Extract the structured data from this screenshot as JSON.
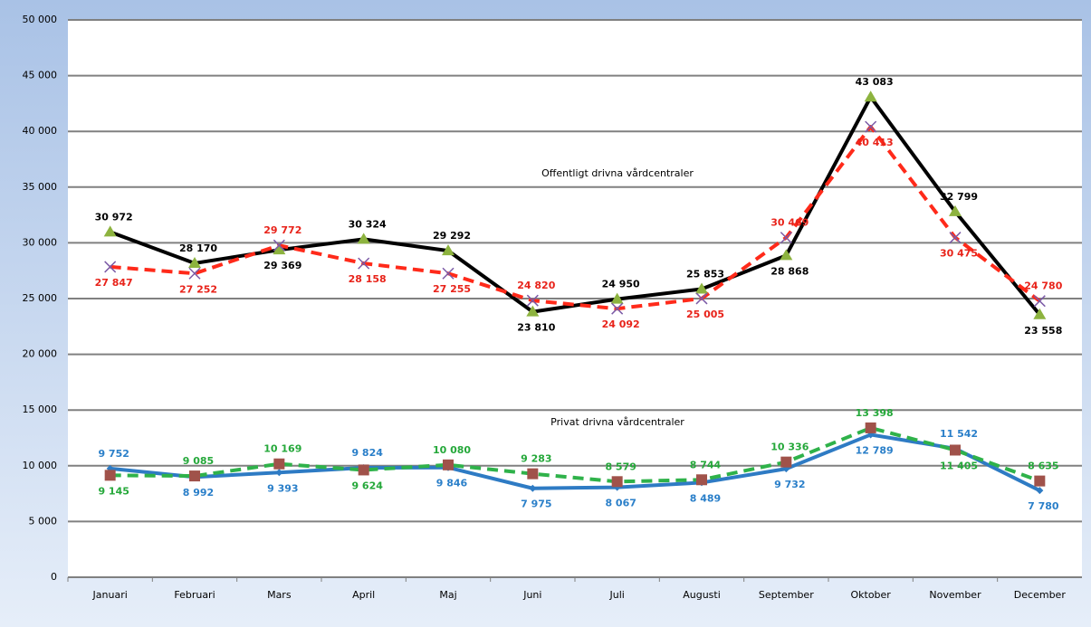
{
  "chart_data": {
    "type": "line",
    "categories": [
      "Januari",
      "Februari",
      "Mars",
      "April",
      "Maj",
      "Juni",
      "Juli",
      "Augusti",
      "September",
      "Oktober",
      "November",
      "December"
    ],
    "annotations": [
      "Offentligt drivna vårdcentraler",
      "Privat drivna vårdcentraler"
    ],
    "ylim": [
      0,
      50000
    ],
    "yticks": [
      0,
      {
        "value": 5000,
        "label": "5 000"
      },
      {
        "value": 10000,
        "label": "10 000"
      },
      {
        "value": 15000,
        "label": "15 000"
      },
      {
        "value": 20000,
        "label": "20 000"
      },
      {
        "value": 25000,
        "label": "25 000"
      },
      {
        "value": 30000,
        "label": "30 000"
      },
      {
        "value": 35000,
        "label": "35 000"
      },
      {
        "value": 40000,
        "label": "40 000"
      },
      {
        "value": 45000,
        "label": "45 000"
      },
      {
        "value": 50000,
        "label": "50 000"
      }
    ],
    "grid": true,
    "series": [
      {
        "color": "#000000",
        "label_color": "#000000",
        "marker": "triangle",
        "marker_color": "#8db33f",
        "dashed": false,
        "values": [
          30972,
          28170,
          29369,
          30324,
          29292,
          23810,
          24950,
          25853,
          28868,
          43083,
          32799,
          23558
        ],
        "value_labels": [
          "30 972",
          "28 170",
          "29 369",
          "30 324",
          "29 292",
          "23 810",
          "24 950",
          "25 853",
          "28 868",
          "43 083",
          "32 799",
          "23 558"
        ]
      },
      {
        "color": "#ff2a1a",
        "label_color": "#e8231a",
        "marker": "x",
        "marker_color": "#7b5aa6",
        "dashed": true,
        "values": [
          27847,
          27252,
          29772,
          28158,
          27255,
          24820,
          24092,
          25005,
          30469,
          40413,
          30475,
          24780
        ],
        "value_labels": [
          "27 847",
          "27 252",
          "29 772",
          "28 158",
          "27 255",
          "24 820",
          "24 092",
          "25 005",
          "30 469",
          "40 413",
          "30 475",
          "24 780"
        ]
      },
      {
        "color": "#2e7bc4",
        "label_color": "#2a7fc9",
        "marker": "diamond",
        "marker_color": "#2e7bc4",
        "dashed": false,
        "values": [
          9752,
          8992,
          9393,
          9824,
          9846,
          7975,
          8067,
          8489,
          9732,
          12789,
          11542,
          7780
        ],
        "value_labels": [
          "9 752",
          "8 992",
          "9 393",
          "9 824",
          "9 846",
          "7 975",
          "8 067",
          "8 489",
          "9 732",
          "12 789",
          "11 542",
          "7 780"
        ]
      },
      {
        "color": "#2fb24a",
        "label_color": "#25a83a",
        "marker": "square",
        "marker_color": "#a0524a",
        "dashed": true,
        "values": [
          9145,
          9085,
          10169,
          9624,
          10080,
          9283,
          8579,
          8744,
          10336,
          13398,
          11405,
          8635
        ],
        "value_labels": [
          "9 145",
          "9 085",
          "10 169",
          "9 624",
          "10 080",
          "9 283",
          "8 579",
          "8 744",
          "10 336",
          "13 398",
          "11 405",
          "8 635"
        ]
      }
    ]
  }
}
